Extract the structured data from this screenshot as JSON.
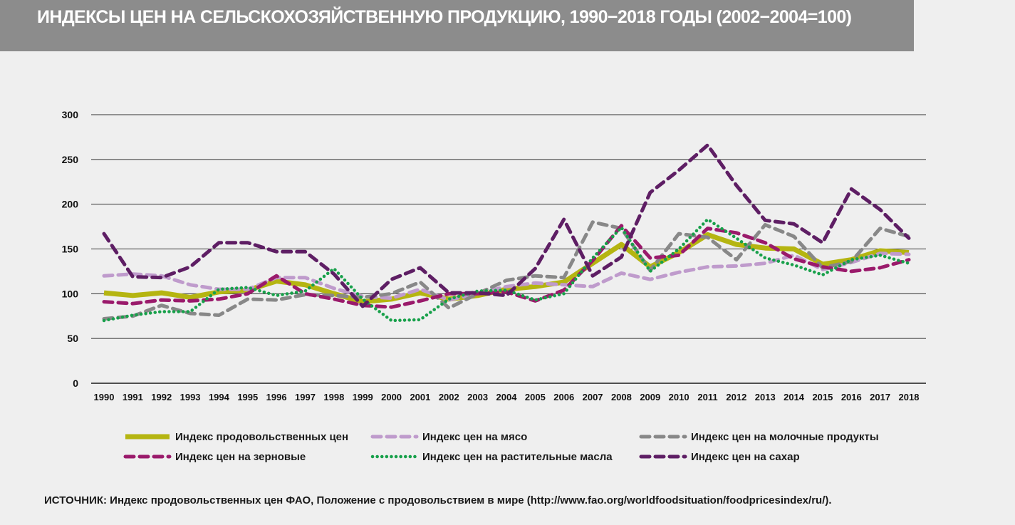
{
  "title": "ИНДЕКСЫ ЦЕН НА СЕЛЬСКОХОЗЯЙСТВЕННУЮ ПРОДУКЦИЮ, 1990−2018 ГОДЫ (2002−2004=100)",
  "source": "ИСТОЧНИК: Индекс продовольственных цен ФАО, Положение с продовольствием в мире (http://www.fao.org/worldfoodsituation/foodpricesindex/ru/).",
  "chart_data": {
    "type": "line",
    "x": [
      "1990",
      "1991",
      "1992",
      "1993",
      "1994",
      "1995",
      "1996",
      "1997",
      "1998",
      "1999",
      "2000",
      "2001",
      "2002",
      "2003",
      "2004",
      "2005",
      "2006",
      "2007",
      "2008",
      "2009",
      "2010",
      "2011",
      "2012",
      "2013",
      "2014",
      "2015",
      "2016",
      "2017",
      "2018"
    ],
    "ylim": [
      0,
      300
    ],
    "yticks": [
      0,
      50,
      100,
      150,
      200,
      250,
      300
    ],
    "grid": true,
    "legend_position": "bottom",
    "series": [
      {
        "name": "Индекс продовольственных цен",
        "color": "#b5b511",
        "style": "solid",
        "values": [
          101,
          98,
          101,
          96,
          102,
          104,
          114,
          110,
          100,
          91,
          94,
          101,
          94,
          98,
          105,
          108,
          113,
          134,
          155,
          130,
          146,
          166,
          155,
          151,
          150,
          133,
          138,
          148,
          146
        ]
      },
      {
        "name": "Индекс цен на мясо",
        "color": "#bf9bcc",
        "style": "dash",
        "values": [
          120,
          122,
          120,
          110,
          105,
          105,
          118,
          118,
          106,
          97,
          95,
          105,
          93,
          100,
          108,
          112,
          110,
          108,
          123,
          116,
          124,
          130,
          131,
          134,
          143,
          127,
          135,
          145,
          144
        ]
      },
      {
        "name": "Индекс цен на молочные продукты",
        "color": "#888888",
        "style": "dash",
        "values": [
          72,
          75,
          87,
          78,
          76,
          94,
          93,
          99,
          98,
          96,
          100,
          113,
          84,
          100,
          115,
          120,
          118,
          180,
          173,
          126,
          167,
          163,
          138,
          177,
          164,
          129,
          136,
          173,
          164
        ]
      },
      {
        "name": "Индекс цен на зерновые",
        "color": "#9a1a6b",
        "style": "dash",
        "values": [
          91,
          89,
          93,
          92,
          94,
          100,
          120,
          100,
          94,
          87,
          85,
          92,
          100,
          100,
          102,
          92,
          104,
          137,
          176,
          140,
          143,
          173,
          168,
          157,
          139,
          130,
          125,
          129,
          138
        ]
      },
      {
        "name": "Индекс цен на растительные масла",
        "color": "#17a04a",
        "style": "dot",
        "values": [
          70,
          76,
          80,
          80,
          105,
          107,
          98,
          103,
          128,
          94,
          70,
          71,
          94,
          103,
          104,
          93,
          100,
          140,
          174,
          125,
          150,
          183,
          162,
          140,
          132,
          121,
          138,
          143,
          134
        ]
      },
      {
        "name": "Индекс цен на сахар",
        "color": "#5e1e64",
        "style": "dash",
        "values": [
          167,
          119,
          118,
          130,
          157,
          157,
          147,
          147,
          122,
          86,
          116,
          129,
          101,
          101,
          98,
          128,
          183,
          120,
          141,
          213,
          238,
          266,
          221,
          182,
          178,
          157,
          217,
          194,
          162
        ]
      }
    ]
  }
}
